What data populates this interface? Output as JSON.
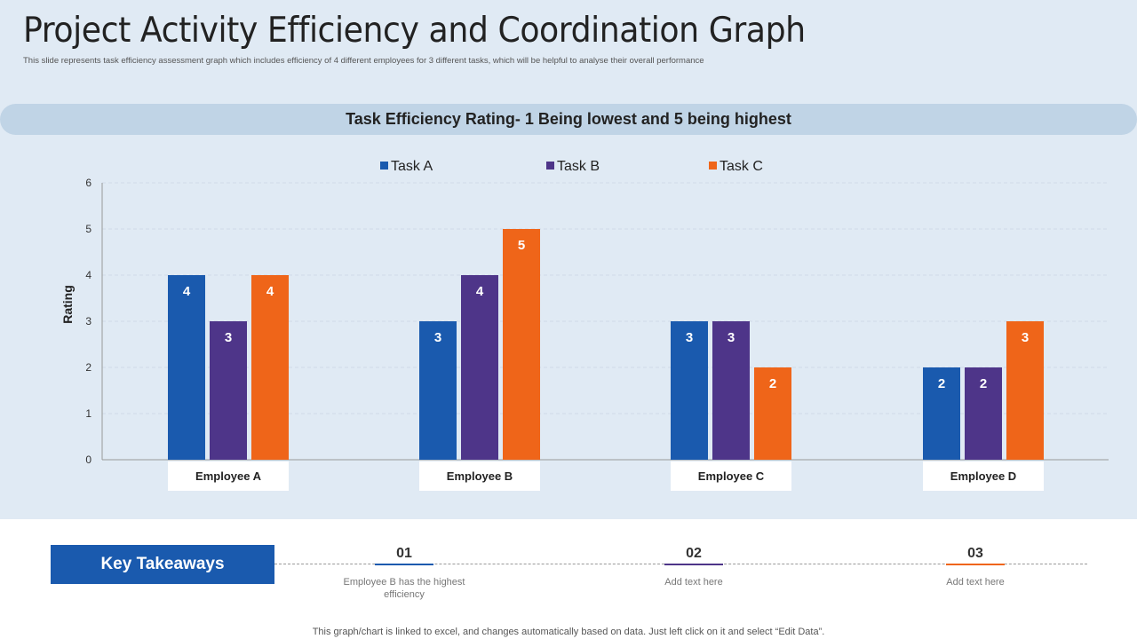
{
  "header": {
    "title": "Project Activity Efficiency and Coordination Graph",
    "subtitle": "This slide represents task efficiency assessment graph which includes efficiency of 4 different employees for 3 different tasks, which will be helpful to analyse their overall performance"
  },
  "banner": "Task Efficiency Rating- 1 Being lowest and 5 being highest",
  "chart_data": {
    "type": "bar",
    "categories": [
      "Employee A",
      "Employee B",
      "Employee C",
      "Employee D"
    ],
    "series": [
      {
        "name": "Task A",
        "values": [
          4,
          3,
          3,
          2
        ],
        "color": "#1a5aae"
      },
      {
        "name": "Task B",
        "values": [
          3,
          4,
          3,
          2
        ],
        "color": "#4e3589"
      },
      {
        "name": "Task C",
        "values": [
          4,
          5,
          2,
          3
        ],
        "color": "#ef6519"
      }
    ],
    "ylabel": "Rating",
    "ylim": [
      0,
      6
    ],
    "yticks": [
      0,
      1,
      2,
      3,
      4,
      5,
      6
    ],
    "grid": true,
    "legend": "top",
    "data_labels": true
  },
  "takeaways": {
    "label": "Key Takeaways",
    "items": [
      {
        "num": "01",
        "text": "Employee B has the highest efficiency",
        "color": "#1a5aae"
      },
      {
        "num": "02",
        "text": "Add text here",
        "color": "#4e3589"
      },
      {
        "num": "03",
        "text": "Add text here",
        "color": "#ef6519"
      }
    ]
  },
  "footer": "This graph/chart is linked to excel, and changes automatically based on data. Just left click on it and select “Edit Data”."
}
